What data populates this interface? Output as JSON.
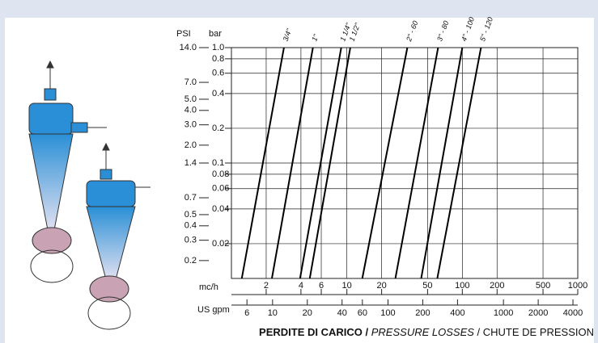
{
  "chart_data": {
    "type": "line",
    "log_x": true,
    "log_y": true,
    "grid": true,
    "y_label": "bar",
    "y2_label": "PSI",
    "x_label": "mc/h",
    "x2_label": "US gpm",
    "xlim": [
      1,
      1000
    ],
    "xticks": [
      2,
      4,
      6,
      10,
      20,
      50,
      100,
      200,
      500,
      1000
    ],
    "x2lim": [
      4.403,
      4403
    ],
    "x2ticks": [
      6,
      10,
      20,
      40,
      60,
      100,
      200,
      400,
      1000,
      2000,
      4000
    ],
    "ylim": [
      0.01,
      1.0
    ],
    "yticks": [
      {
        "value": 1.0,
        "label": "1.0"
      },
      0.8,
      0.6,
      0.4,
      0.2,
      0.1,
      0.08,
      0.06,
      0.04,
      0.02
    ],
    "y2lim": [
      0.14,
      14
    ],
    "y2ticks": [
      {
        "value": 14,
        "label": "14.0"
      },
      {
        "value": 7,
        "label": "7.0"
      },
      {
        "value": 5,
        "label": "5.0"
      },
      {
        "value": 4,
        "label": "4.0"
      },
      {
        "value": 3,
        "label": "3.0"
      },
      {
        "value": 2,
        "label": "2.0"
      },
      1.4,
      0.7,
      0.5,
      0.4,
      0.3,
      0.2
    ],
    "series": [
      {
        "name": "3/4\"",
        "color": "#000000",
        "x": [
          1.23,
          2.85
        ],
        "values": [
          0.01,
          1.0
        ]
      },
      {
        "name": "1\"",
        "color": "#000000",
        "x": [
          2.24,
          5.08
        ],
        "values": [
          0.01,
          1.0
        ]
      },
      {
        "name": "1 1/4\"",
        "color": "#000000",
        "x": [
          3.93,
          8.93
        ],
        "values": [
          0.01,
          1.0
        ]
      },
      {
        "name": "1 1/2\"",
        "color": "#000000",
        "x": [
          4.77,
          10.7
        ],
        "values": [
          0.01,
          1.0
        ]
      },
      {
        "name": "2\" - 60",
        "color": "#000000",
        "x": [
          13.6,
          33.4
        ],
        "values": [
          0.01,
          1.0
        ]
      },
      {
        "name": "3\" - 80",
        "color": "#000000",
        "x": [
          26.3,
          61.7
        ],
        "values": [
          0.01,
          1.0
        ]
      },
      {
        "name": "4\" - 100",
        "color": "#000000",
        "x": [
          44,
          100
        ],
        "values": [
          0.01,
          1.0
        ]
      },
      {
        "name": "5\" - 120",
        "color": "#000000",
        "x": [
          60.7,
          145
        ],
        "values": [
          0.01,
          1.0
        ]
      }
    ],
    "footer": {
      "it": "PERDITE DI CARICO /",
      "en": "PRESSURE LOSSES",
      "fr": "/ CHUTE DE PRESSION"
    }
  }
}
